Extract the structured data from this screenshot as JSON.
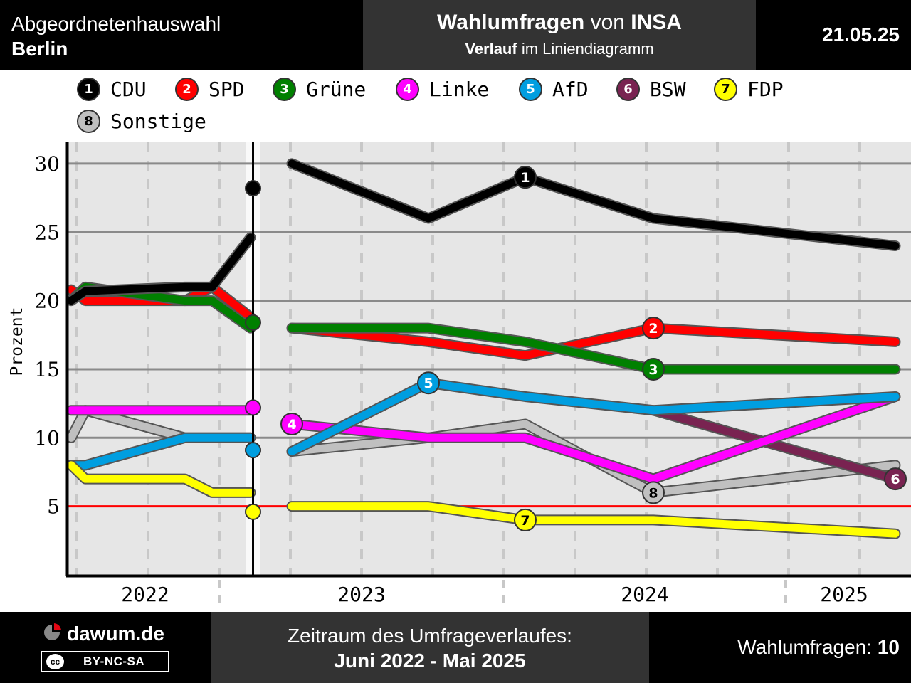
{
  "header": {
    "left_line1": "Abgeordnetenhauswahl",
    "left_line2": "Berlin",
    "center_bold1": "Wahlumfragen",
    "center_mid1": " von ",
    "center_bold2": "INSA",
    "center_bold3": "Verlauf",
    "center_mid2": " im Liniendiagramm",
    "date": "21.05.25"
  },
  "footer": {
    "logo_text": "dawum.de",
    "license_mark": "cc",
    "license": "BY-NC-SA",
    "period_label": "Zeitraum des Umfrageverlaufes:",
    "period_value": "Juni 2022 - Mai 2025",
    "count_label": "Wahlumfragen: ",
    "count_value": "10"
  },
  "colors": {
    "threshold": "#ff0000",
    "plot_background": "#e6e6e6",
    "outline": "#555555"
  },
  "chart_data": {
    "type": "line",
    "ylabel": "Prozent",
    "ylim": [
      0,
      31
    ],
    "yticks": [
      5,
      10,
      15,
      20,
      25,
      30
    ],
    "threshold": 5,
    "year_labels": [
      "2022",
      "2023",
      "2024",
      "2025"
    ],
    "election_marker": {
      "values": {
        "CDU": 28.2,
        "Grüne": 18.4,
        "Linke": 12.2,
        "AfD": 9.1,
        "FDP": 4.6
      }
    },
    "series": [
      {
        "id": "1",
        "name": "CDU",
        "color": "#000000",
        "text": "#ffffff",
        "before": [
          [
            0,
            20
          ],
          [
            1,
            20.7
          ],
          [
            2,
            21
          ],
          [
            3,
            21
          ],
          [
            4,
            24.6
          ]
        ],
        "after": [
          [
            0,
            30
          ],
          [
            1,
            26
          ],
          [
            2,
            29
          ],
          [
            3,
            26
          ],
          [
            4,
            24
          ]
        ]
      },
      {
        "id": "2",
        "name": "SPD",
        "color": "#ff0000",
        "text": "#ffffff",
        "before": [
          [
            0,
            20.8
          ],
          [
            1,
            20
          ],
          [
            2,
            20
          ],
          [
            3,
            21
          ],
          [
            4,
            18.8
          ]
        ],
        "after": [
          [
            0,
            18
          ],
          [
            1,
            17
          ],
          [
            2,
            16
          ],
          [
            3,
            18
          ],
          [
            4,
            17
          ]
        ]
      },
      {
        "id": "3",
        "name": "Grüne",
        "color": "#008000",
        "text": "#ffffff",
        "before": [
          [
            0,
            20
          ],
          [
            1,
            21
          ],
          [
            2,
            20
          ],
          [
            3,
            20
          ],
          [
            4,
            18
          ]
        ],
        "after": [
          [
            0,
            18
          ],
          [
            1,
            18
          ],
          [
            2,
            17
          ],
          [
            3,
            15
          ],
          [
            4,
            15
          ]
        ]
      },
      {
        "id": "4",
        "name": "Linke",
        "color": "#ff00ff",
        "text": "#ffffff",
        "before": [
          [
            0,
            12
          ],
          [
            1,
            12
          ],
          [
            2,
            12
          ],
          [
            3,
            12
          ],
          [
            4,
            12
          ]
        ],
        "after": [
          [
            0,
            11
          ],
          [
            1,
            10
          ],
          [
            2,
            10
          ],
          [
            3,
            7
          ],
          [
            4,
            13
          ]
        ]
      },
      {
        "id": "5",
        "name": "AfD",
        "color": "#009ee0",
        "text": "#ffffff",
        "before": [
          [
            0,
            8
          ],
          [
            1,
            8
          ],
          [
            2,
            10
          ],
          [
            3,
            10
          ],
          [
            4,
            10
          ]
        ],
        "after": [
          [
            0,
            9
          ],
          [
            1,
            14
          ],
          [
            2,
            13
          ],
          [
            3,
            12
          ],
          [
            4,
            13
          ]
        ]
      },
      {
        "id": "6",
        "name": "BSW",
        "color": "#792351",
        "text": "#ffffff",
        "before": [],
        "after": [
          [
            3,
            12
          ],
          [
            4,
            7
          ]
        ]
      },
      {
        "id": "7",
        "name": "FDP",
        "color": "#ffff00",
        "text": "#000000",
        "before": [
          [
            0,
            8
          ],
          [
            1,
            7
          ],
          [
            2,
            7
          ],
          [
            3,
            6
          ],
          [
            4,
            6
          ]
        ],
        "after": [
          [
            0,
            5
          ],
          [
            1,
            5
          ],
          [
            2,
            4
          ],
          [
            3,
            4
          ],
          [
            4,
            3
          ]
        ]
      },
      {
        "id": "8",
        "name": "Sonstige",
        "color": "#c0c0c0",
        "text": "#000000",
        "before": [
          [
            0,
            10
          ],
          [
            1,
            12
          ],
          [
            2,
            10
          ],
          [
            3,
            10
          ],
          [
            4,
            10
          ]
        ],
        "after": [
          [
            0,
            9
          ],
          [
            1,
            10
          ],
          [
            2,
            11
          ],
          [
            3,
            6
          ],
          [
            4,
            8
          ]
        ]
      }
    ],
    "label_points": {
      "1": [
        2,
        29
      ],
      "2": [
        3,
        18
      ],
      "3": [
        3,
        15
      ],
      "4": [
        0,
        11
      ],
      "5": [
        1,
        14
      ],
      "6": [
        4,
        7
      ],
      "7": [
        2,
        4
      ],
      "8": [
        3,
        6
      ]
    }
  }
}
